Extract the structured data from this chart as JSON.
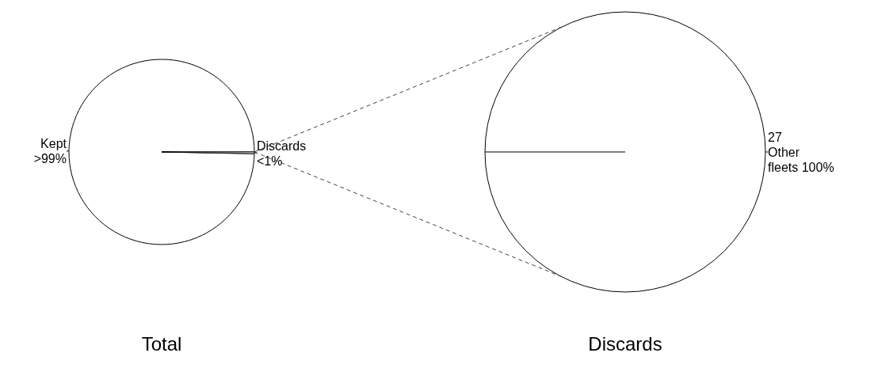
{
  "chart_data": [
    {
      "type": "pie",
      "title": "Total",
      "categories": [
        "Kept",
        "Discards"
      ],
      "values": [
        99.7,
        0.3
      ],
      "value_labels": [
        ">99%",
        "<1%"
      ],
      "colors": [
        "#ffffff",
        "#ffffff"
      ]
    },
    {
      "type": "pie",
      "title": "Discards",
      "categories": [
        "27\nOther\nfleets"
      ],
      "values": [
        100
      ],
      "value_labels": [
        "100%"
      ],
      "colors": [
        "#ffffff"
      ]
    }
  ]
}
